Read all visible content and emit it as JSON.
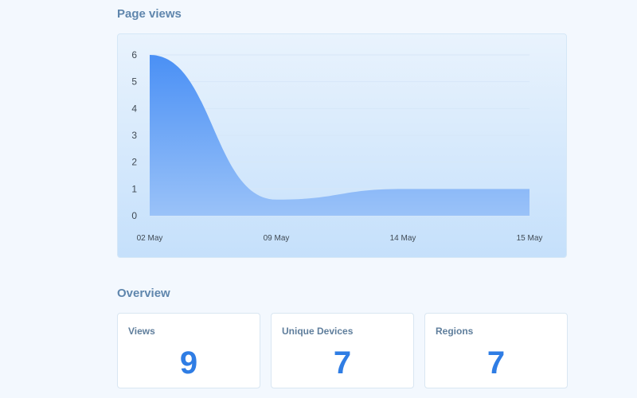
{
  "page_views": {
    "title": "Page views"
  },
  "chart_data": {
    "type": "area",
    "title": "",
    "xlabel": "",
    "ylabel": "",
    "x_tick_labels": [
      "02 May",
      "09 May",
      "14 May",
      "15 May"
    ],
    "y_ticks": [
      "0",
      "1",
      "2",
      "3",
      "4",
      "5",
      "6"
    ],
    "ylim": [
      0,
      6
    ],
    "series": [
      {
        "values": [
          6,
          0.6,
          1,
          1
        ]
      }
    ],
    "grid": true,
    "colors": {
      "fill_top": "#4a90f5",
      "fill_bottom": "#9ac2f8"
    }
  },
  "overview": {
    "title": "Overview",
    "stats": [
      {
        "label": "Views",
        "value": "9"
      },
      {
        "label": "Unique Devices",
        "value": "7"
      },
      {
        "label": "Regions",
        "value": "7"
      }
    ]
  }
}
